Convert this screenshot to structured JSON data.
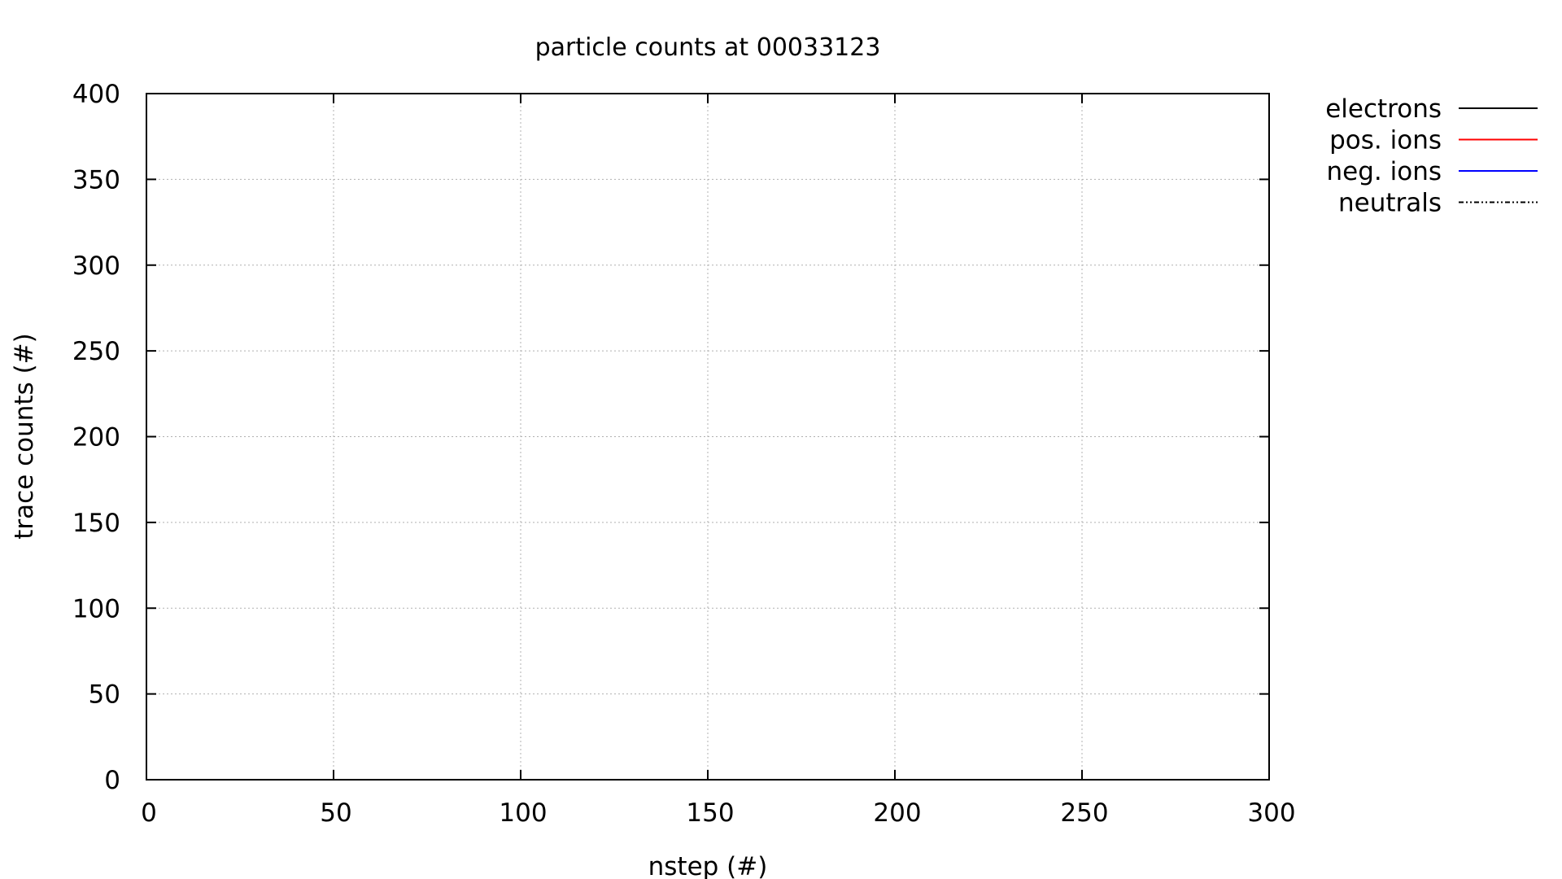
{
  "chart_data": {
    "type": "line",
    "title": "particle counts at 00033123",
    "xlabel": "nstep (#)",
    "ylabel": "trace counts (#)",
    "xlim": [
      0,
      300
    ],
    "ylim": [
      0,
      400
    ],
    "x_ticks": [
      0,
      50,
      100,
      150,
      200,
      250,
      300
    ],
    "x_tick_labels": [
      "0",
      "50",
      "100",
      "150",
      "200",
      "250",
      "300"
    ],
    "y_ticks": [
      0,
      50,
      100,
      150,
      200,
      250,
      300,
      350,
      400
    ],
    "y_tick_labels": [
      "0",
      "50",
      "100",
      "150",
      "200",
      "250",
      "300",
      "350",
      "400"
    ],
    "grid": true,
    "legend_position": "outside-top-right",
    "series": [
      {
        "name": "electrons",
        "color": "#000000",
        "dash": "solid",
        "x": [],
        "y": []
      },
      {
        "name": "pos. ions",
        "color": "#ff0000",
        "dash": "solid",
        "x": [],
        "y": []
      },
      {
        "name": "neg. ions",
        "color": "#0000ff",
        "dash": "solid",
        "x": [],
        "y": []
      },
      {
        "name": "neutrals",
        "color": "#000000",
        "dash": "dash-dot-dot",
        "x": [],
        "y": []
      }
    ]
  }
}
